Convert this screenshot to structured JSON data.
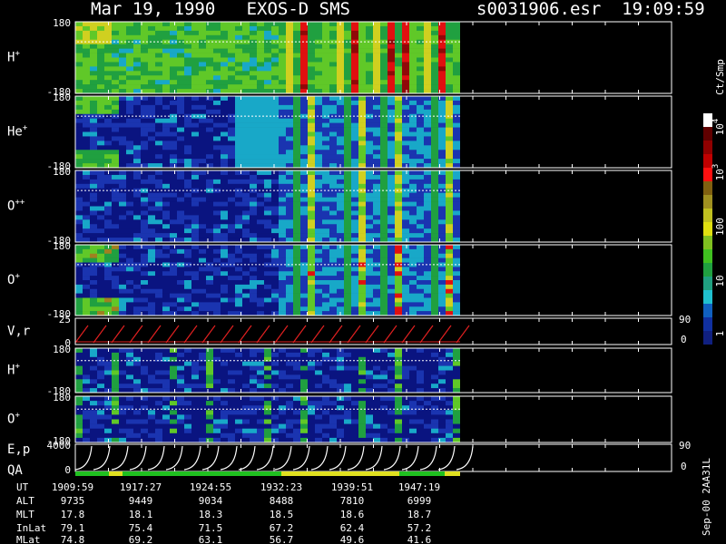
{
  "header": {
    "title": "Mar 19, 1990   EXOS-D SMS",
    "file": "s0031906.esr  19:09:59"
  },
  "panels": [
    {
      "label": "H",
      "sup": "+",
      "ticks": [
        "180",
        "-180"
      ]
    },
    {
      "label": "He",
      "sup": "+",
      "ticks": [
        "180",
        "-180"
      ]
    },
    {
      "label": "O",
      "sup": "++",
      "ticks": [
        "180",
        "-180"
      ]
    },
    {
      "label": "O",
      "sup": "+",
      "ticks": [
        "180",
        "-180"
      ]
    },
    {
      "label": "V,r",
      "ticks": [
        "25",
        "0"
      ],
      "right_ticks": [
        "90",
        "0"
      ]
    },
    {
      "label": "H",
      "sup": "+",
      "ticks": [
        "180",
        "-180"
      ]
    },
    {
      "label": "O",
      "sup": "+",
      "ticks": [
        "180",
        "-180"
      ]
    },
    {
      "label": "E,p",
      "sublabel": "QA",
      "ticks": [
        "4000",
        "0"
      ],
      "right_ticks": [
        "90",
        "0"
      ]
    }
  ],
  "colorbar": {
    "unit": "Ct/Smp",
    "labels": [
      {
        "text": "10",
        "sup": "4"
      },
      {
        "text": "10",
        "sup": "3"
      },
      {
        "text": "100"
      },
      {
        "text": "10"
      },
      {
        "text": "1"
      }
    ]
  },
  "footer": {
    "rows": [
      {
        "label": "UT",
        "values": [
          "1909:59",
          "1917:27",
          "1924:55",
          "1932:23",
          "1939:51",
          "1947:19"
        ]
      },
      {
        "label": "ALT",
        "values": [
          "9735",
          "9449",
          "9034",
          "8488",
          "7810",
          "6999"
        ]
      },
      {
        "label": "MLT",
        "values": [
          "17.8",
          "18.1",
          "18.3",
          "18.5",
          "18.6",
          "18.7"
        ]
      },
      {
        "label": "InLat",
        "values": [
          "79.1",
          "75.4",
          "71.5",
          "67.2",
          "62.4",
          "57.2"
        ]
      },
      {
        "label": "MLat",
        "values": [
          "74.8",
          "69.2",
          "63.1",
          "56.7",
          "49.6",
          "41.6"
        ]
      }
    ]
  },
  "stamp": "Sep-00 2AA31L"
}
